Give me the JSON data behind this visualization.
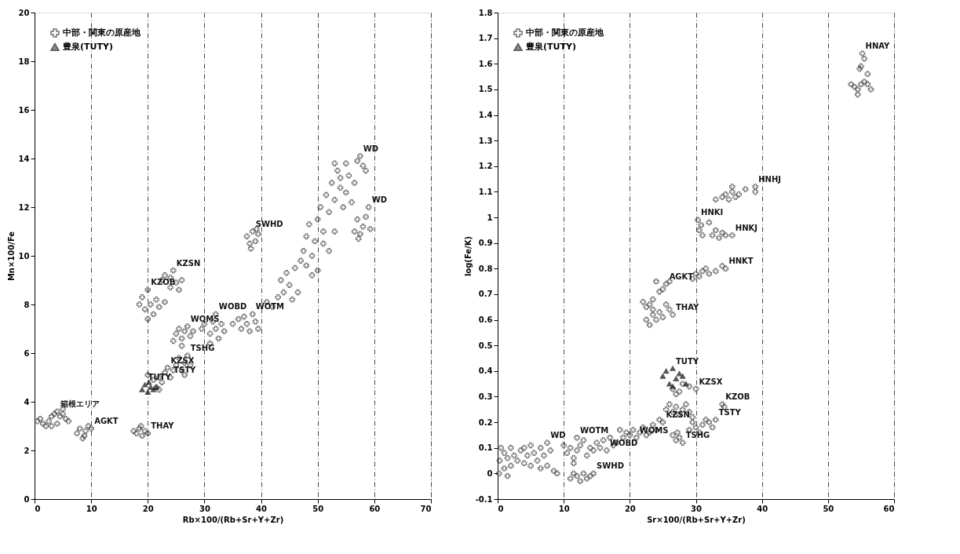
{
  "chart_data": [
    {
      "type": "scatter",
      "xlabel": "Rb×100/(Rb+Sr+Y+Zr)",
      "ylabel": "Mn×100/Fe",
      "xlim": [
        0,
        70
      ],
      "xticks": [
        0,
        10,
        20,
        30,
        40,
        50,
        60,
        70
      ],
      "ylim": [
        0,
        20
      ],
      "yticks": [
        0,
        2,
        4,
        6,
        8,
        10,
        12,
        14,
        16,
        18,
        20
      ],
      "grid": "x",
      "legend": "top left",
      "series": [
        {
          "name": "中部・関東の原産地",
          "color": "#333333",
          "marker": "cross",
          "x": [
            0.5,
            1,
            1.5,
            2,
            2.5,
            3,
            3.5,
            4,
            4.5,
            5,
            5.5,
            6,
            4,
            3,
            5,
            7.5,
            8,
            8.5,
            9,
            9.5,
            8.8,
            10,
            17.5,
            18,
            18.5,
            19,
            19.5,
            20,
            18.8,
            20,
            21,
            22,
            22.5,
            23,
            23.5,
            24,
            24.5,
            21.5,
            22,
            25,
            25.5,
            26,
            26.5,
            27,
            27.5,
            26.5,
            24.5,
            25,
            25.5,
            26,
            26.5,
            27,
            27.5,
            26,
            28,
            18.5,
            19,
            19.5,
            20,
            20.5,
            21,
            21.5,
            22,
            20,
            23,
            22.5,
            23,
            24,
            24.5,
            25,
            25.5,
            24,
            26,
            29.5,
            30,
            31,
            31.5,
            32,
            32.5,
            33,
            33.5,
            32,
            31,
            35,
            36,
            36.5,
            37,
            37.5,
            38,
            38.5,
            39,
            39.5,
            37.5,
            38,
            38.5,
            39,
            39.5,
            38.2,
            39.2,
            41,
            42,
            43,
            43.5,
            44,
            44.5,
            45,
            45.5,
            46,
            46.5,
            47,
            47.5,
            48,
            48,
            48.5,
            49,
            49,
            49.5,
            50,
            50,
            50.5,
            51,
            51,
            51.5,
            52,
            52,
            52.5,
            53,
            53,
            53.5,
            54,
            54,
            54.5,
            55,
            55,
            55.5,
            56,
            56.5,
            57,
            57.5,
            58,
            58.5,
            53,
            56.5,
            57,
            57.5,
            58,
            58.5,
            59,
            59.3,
            57.2
          ],
          "values": [
            3.2,
            3.3,
            3.1,
            3.0,
            3.2,
            3.4,
            3.5,
            3.6,
            3.4,
            3.5,
            3.3,
            3.2,
            3.1,
            3.0,
            3.7,
            2.7,
            2.9,
            2.5,
            2.8,
            3.0,
            2.6,
            2.9,
            2.8,
            2.7,
            2.9,
            2.6,
            2.8,
            2.7,
            3.0,
            5.1,
            4.9,
            5.0,
            4.8,
            5.2,
            5.4,
            5.0,
            5.3,
            4.6,
            4.5,
            5.5,
            5.8,
            5.3,
            5.6,
            5.9,
            5.5,
            5.1,
            6.5,
            6.8,
            7.0,
            6.6,
            6.9,
            7.1,
            6.7,
            6.3,
            6.9,
            8.0,
            8.3,
            7.8,
            8.6,
            8.0,
            7.6,
            8.2,
            7.9,
            7.4,
            8.1,
            9.0,
            9.2,
            9.1,
            9.4,
            8.9,
            8.6,
            8.7,
            9.0,
            7.0,
            7.2,
            6.8,
            7.3,
            7.0,
            6.6,
            7.2,
            6.9,
            7.6,
            6.4,
            7.2,
            7.4,
            7.0,
            7.5,
            7.2,
            6.9,
            7.6,
            7.3,
            7.0,
            10.8,
            10.5,
            11.0,
            10.6,
            10.9,
            10.3,
            11.1,
            8.1,
            7.9,
            8.3,
            9.0,
            8.5,
            9.3,
            8.8,
            8.2,
            9.5,
            8.5,
            9.8,
            10.2,
            9.6,
            10.8,
            11.3,
            10.0,
            9.2,
            10.6,
            11.5,
            9.4,
            12.0,
            10.5,
            11.0,
            12.5,
            11.8,
            10.2,
            13.0,
            12.3,
            11.0,
            13.5,
            12.8,
            13.2,
            12.0,
            13.8,
            12.6,
            13.3,
            12.2,
            13.0,
            13.9,
            14.1,
            13.7,
            13.5,
            13.8,
            11.0,
            11.5,
            10.9,
            11.2,
            11.6,
            12.0,
            11.1,
            10.7
          ]
        },
        {
          "name": "豊泉(TUTY)",
          "color": "#111111",
          "marker": "triangle",
          "x": [
            19,
            19.5,
            20,
            20.5,
            21,
            21.5,
            20.2
          ],
          "values": [
            4.5,
            4.7,
            4.4,
            4.6,
            4.5,
            4.6,
            4.8
          ]
        }
      ],
      "annotations": [
        {
          "text": "箱根エリア",
          "x": 4,
          "y": 3.6
        },
        {
          "text": "AGKT",
          "x": 10,
          "y": 2.9
        },
        {
          "text": "THAY",
          "x": 20,
          "y": 2.7
        },
        {
          "text": "TSTY",
          "x": 24,
          "y": 5.0
        },
        {
          "text": "TSHG",
          "x": 27,
          "y": 5.9
        },
        {
          "text": "KZSX",
          "x": 23.5,
          "y": 5.4
        },
        {
          "text": "TUTY",
          "x": 19.5,
          "y": 4.7
        },
        {
          "text": "WOMS",
          "x": 27,
          "y": 7.1
        },
        {
          "text": "WOBD",
          "x": 32,
          "y": 7.6
        },
        {
          "text": "WOTM",
          "x": 38.5,
          "y": 7.6
        },
        {
          "text": "KZOB",
          "x": 20,
          "y": 8.6
        },
        {
          "text": "KZSN",
          "x": 24.5,
          "y": 9.4
        },
        {
          "text": "SWHD",
          "x": 38.5,
          "y": 11.0
        },
        {
          "text": "WD",
          "x": 57.5,
          "y": 14.1
        },
        {
          "text": "WD",
          "x": 59,
          "y": 12.0
        }
      ]
    },
    {
      "type": "scatter",
      "xlabel": "Sr×100/(Rb+Sr+Y+Zr)",
      "ylabel": "log(Fe/K)",
      "xlim": [
        0,
        60
      ],
      "xticks": [
        0,
        10,
        20,
        30,
        40,
        50,
        60
      ],
      "ylim": [
        -0.1,
        1.8
      ],
      "yticks": [
        -0.1,
        0,
        0.1,
        0.2,
        0.3,
        0.4,
        0.5,
        0.6,
        0.7,
        0.8,
        0.9,
        1,
        1.1,
        1.2,
        1.3,
        1.4,
        1.5,
        1.6,
        1.7,
        1.8
      ],
      "grid": "x",
      "legend": "top left",
      "series": [
        {
          "name": "中部・関東の原産地",
          "color": "#333333",
          "marker": "cross",
          "x": [
            0.3,
            0.5,
            1,
            1,
            1.5,
            2,
            2,
            2.5,
            3,
            3.5,
            4,
            4,
            4.5,
            5,
            5,
            5.5,
            6,
            6.5,
            6.5,
            7,
            7.5,
            7.5,
            8,
            8.5,
            9,
            0.2,
            1.5,
            10,
            10.5,
            11,
            11.5,
            12,
            12,
            12.5,
            13,
            13.5,
            14,
            11.5,
            14.5,
            15,
            15.5,
            16,
            16.5,
            17,
            17.5,
            18,
            18.5,
            19,
            19.5,
            20,
            20.5,
            21,
            21.5,
            22,
            22.5,
            23,
            23.5,
            24,
            24.5,
            25,
            25.5,
            26,
            26.5,
            27,
            27.5,
            28,
            28.5,
            29,
            29.5,
            26.5,
            27,
            27.5,
            28,
            27.2,
            29,
            29.5,
            30,
            30.5,
            31,
            31.5,
            32,
            32.5,
            33,
            34,
            34.3,
            26.5,
            27,
            27.5,
            28,
            29,
            30,
            11,
            11.5,
            12,
            12.5,
            13,
            13.5,
            14,
            14.5,
            22,
            22.5,
            23,
            23.5,
            24,
            24.5,
            25,
            25.5,
            26,
            23.5,
            22.5,
            23,
            23.5,
            24,
            24.5,
            25,
            25.5,
            26,
            26.5,
            29.5,
            30,
            30.5,
            31,
            31.5,
            32,
            33,
            34,
            34.5,
            30.3,
            30.5,
            30.8,
            31,
            32,
            32.5,
            33,
            33.5,
            34,
            34.5,
            35.5,
            33,
            34,
            34.5,
            35,
            35.5,
            36,
            36.5,
            37.5,
            39,
            39,
            35.5,
            53.5,
            54,
            54.5,
            54.5,
            55,
            55,
            55.5,
            55.5,
            56,
            56,
            56.5,
            55.2,
            54.8
          ],
          "values": [
            0.05,
            0.1,
            0.02,
            0.08,
            0.06,
            0.1,
            0.03,
            0.07,
            0.05,
            0.09,
            0.04,
            0.1,
            0.07,
            0.11,
            0.03,
            0.08,
            0.05,
            0.02,
            0.1,
            0.07,
            0.12,
            0.03,
            0.09,
            0.01,
            0.0,
            0.0,
            -0.01,
            0.11,
            0.08,
            0.1,
            0.06,
            0.14,
            0.09,
            0.11,
            0.13,
            0.07,
            0.1,
            0.04,
            0.09,
            0.12,
            0.1,
            0.13,
            0.09,
            0.14,
            0.11,
            0.12,
            0.17,
            0.14,
            0.16,
            0.15,
            0.17,
            0.14,
            0.16,
            0.18,
            0.15,
            0.16,
            0.19,
            0.17,
            0.21,
            0.2,
            0.25,
            0.27,
            0.24,
            0.26,
            0.23,
            0.25,
            0.27,
            0.24,
            0.22,
            0.15,
            0.13,
            0.14,
            0.12,
            0.16,
            0.17,
            0.2,
            0.18,
            0.16,
            0.19,
            0.21,
            0.2,
            0.18,
            0.21,
            0.27,
            0.26,
            0.33,
            0.31,
            0.32,
            0.35,
            0.34,
            0.33,
            -0.02,
            0.0,
            -0.01,
            -0.03,
            0.0,
            -0.02,
            -0.01,
            0.0,
            0.67,
            0.65,
            0.66,
            0.68,
            0.75,
            0.71,
            0.72,
            0.74,
            0.75,
            0.64,
            0.6,
            0.58,
            0.62,
            0.6,
            0.63,
            0.61,
            0.66,
            0.64,
            0.62,
            0.76,
            0.78,
            0.77,
            0.79,
            0.8,
            0.78,
            0.79,
            0.81,
            0.8,
            0.99,
            0.95,
            0.97,
            0.93,
            0.98,
            0.93,
            0.95,
            0.92,
            0.94,
            0.93,
            0.93,
            1.07,
            1.08,
            1.09,
            1.07,
            1.1,
            1.08,
            1.09,
            1.11,
            1.12,
            1.1,
            1.12,
            1.52,
            1.51,
            1.5,
            1.48,
            1.52,
            1.59,
            1.62,
            1.53,
            1.56,
            1.52,
            1.5,
            1.64,
            1.58
          ]
        },
        {
          "name": "豊泉(TUTY)",
          "color": "#111111",
          "marker": "triangle",
          "x": [
            25,
            25.5,
            26,
            26.5,
            27,
            27.5,
            28,
            28.5,
            26.5
          ],
          "values": [
            0.38,
            0.4,
            0.35,
            0.41,
            0.37,
            0.39,
            0.38,
            0.35,
            0.34
          ]
        }
      ],
      "annotations": [
        {
          "text": "HNAY",
          "x": 55.2,
          "y": 1.64
        },
        {
          "text": "HNHJ",
          "x": 39,
          "y": 1.12
        },
        {
          "text": "HNKI",
          "x": 30.3,
          "y": 0.99
        },
        {
          "text": "HNKJ",
          "x": 35.5,
          "y": 0.93
        },
        {
          "text": "HNKT",
          "x": 34.5,
          "y": 0.8
        },
        {
          "text": "AGKT",
          "x": 25.5,
          "y": 0.74
        },
        {
          "text": "THAY",
          "x": 26.5,
          "y": 0.62
        },
        {
          "text": "TUTY",
          "x": 26.5,
          "y": 0.41
        },
        {
          "text": "KZSX",
          "x": 30,
          "y": 0.33
        },
        {
          "text": "KZOB",
          "x": 34,
          "y": 0.27
        },
        {
          "text": "WOBD",
          "x": 16.5,
          "y": 0.09
        },
        {
          "text": "WOTM",
          "x": 12,
          "y": 0.14
        },
        {
          "text": "WD",
          "x": 7.5,
          "y": 0.12
        },
        {
          "text": "TSTY",
          "x": 33,
          "y": 0.21
        },
        {
          "text": "WOMS",
          "x": 21,
          "y": 0.14
        },
        {
          "text": "TSHG",
          "x": 28,
          "y": 0.12
        },
        {
          "text": "KZSN",
          "x": 25,
          "y": 0.2
        },
        {
          "text": "SWHD",
          "x": 14.5,
          "y": 0.0
        }
      ]
    }
  ]
}
